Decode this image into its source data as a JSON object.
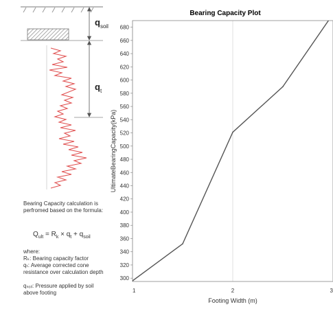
{
  "diagram": {
    "label_q_soil": "q",
    "label_q_soil_sub": "soil",
    "label_q_t": "q",
    "label_q_t_sub": "t"
  },
  "description": {
    "intro": "Bearing Capacity calculation is perfromed based on the formula:",
    "formula": {
      "lhs": "Q",
      "lhs_sub": "ult",
      "mid1": " = R",
      "mid1_sub": "k",
      "mid2": " × q",
      "mid2_sub": "t",
      "mid3": " + q",
      "mid3_sub": "soil"
    },
    "where": "where:",
    "def_rk": "Rₖ: Bearing capacity factor",
    "def_qt": "qₜ: Average corrected cone resistance over calculation depth",
    "def_qsoil": "qₛₒᵢₗ: Pressure applied by soil above footing"
  },
  "chart_data": {
    "type": "line",
    "title": "Bearing Capacity Plot",
    "xlabel": "Footing Width (m)",
    "ylabel": "UltimateBearingCapacity(kPa)",
    "xlim": [
      1,
      3
    ],
    "ylim": [
      295,
      690
    ],
    "xticks": [
      "1",
      "2",
      "3"
    ],
    "yticks": [
      300,
      320,
      340,
      360,
      380,
      400,
      420,
      440,
      460,
      480,
      500,
      520,
      540,
      560,
      580,
      600,
      620,
      640,
      660,
      680
    ],
    "x": [
      1,
      1.5,
      2,
      2.5,
      3
    ],
    "y": [
      296,
      352,
      521,
      590,
      700
    ],
    "grid": true,
    "line_color": "#555555"
  }
}
